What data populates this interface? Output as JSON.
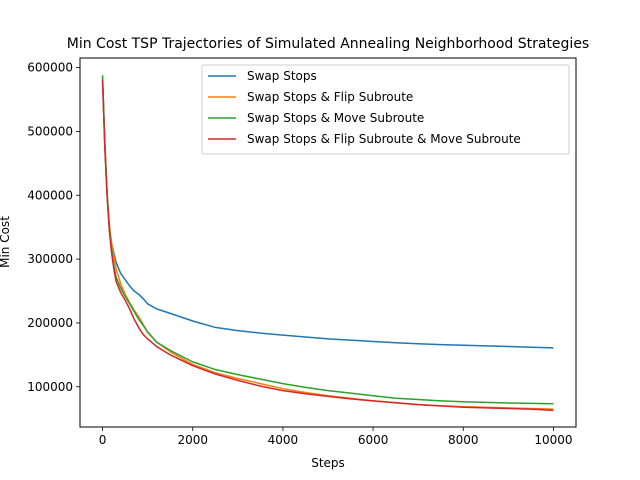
{
  "chart_data": {
    "type": "line",
    "title": "Min Cost TSP Trajectories of Simulated Annealing Neighborhood Strategies",
    "xlabel": "Steps",
    "ylabel": "Min Cost",
    "xlim": [
      -500,
      10500
    ],
    "ylim": [
      37000,
      615000
    ],
    "xticks": [
      0,
      2000,
      4000,
      6000,
      8000,
      10000
    ],
    "yticks": [
      100000,
      200000,
      300000,
      400000,
      500000,
      600000
    ],
    "grid": false,
    "legend_position": "upper-right",
    "series": [
      {
        "name": "Swap Stops",
        "color": "#1f77b4",
        "x": [
          0,
          50,
          100,
          150,
          200,
          250,
          300,
          400,
          500,
          600,
          700,
          800,
          900,
          1000,
          1200,
          1500,
          2000,
          2500,
          3000,
          3500,
          4000,
          4500,
          5000,
          5500,
          6000,
          6500,
          7000,
          7500,
          8000,
          8500,
          9000,
          9500,
          10000
        ],
        "values": [
          580000,
          480000,
          400000,
          350000,
          325000,
          310000,
          295000,
          278000,
          268000,
          258000,
          250000,
          245000,
          238000,
          230000,
          222000,
          215000,
          203000,
          193000,
          188000,
          184000,
          181000,
          178000,
          175000,
          173000,
          171000,
          169000,
          167500,
          166000,
          165000,
          164000,
          163000,
          162000,
          161000
        ]
      },
      {
        "name": "Swap Stops & Flip Subroute",
        "color": "#ff7f0e",
        "x": [
          0,
          50,
          100,
          150,
          200,
          250,
          300,
          400,
          500,
          600,
          700,
          800,
          900,
          1000,
          1200,
          1500,
          2000,
          2500,
          3000,
          3500,
          4000,
          4500,
          5000,
          5500,
          6000,
          6500,
          7000,
          7500,
          8000,
          8500,
          9000,
          9500,
          10000
        ],
        "values": [
          585000,
          480000,
          405000,
          355000,
          325000,
          305000,
          285000,
          262000,
          245000,
          232000,
          220000,
          210000,
          198000,
          185000,
          170000,
          155000,
          135000,
          122000,
          113000,
          105000,
          97000,
          91000,
          86000,
          82000,
          78000,
          75000,
          72000,
          70000,
          69000,
          68000,
          67000,
          66000,
          65000
        ]
      },
      {
        "name": "Swap Stops & Move Subroute",
        "color": "#2ca02c",
        "x": [
          0,
          50,
          100,
          150,
          200,
          250,
          300,
          400,
          500,
          600,
          700,
          800,
          900,
          1000,
          1200,
          1500,
          2000,
          2500,
          3000,
          3500,
          4000,
          4500,
          5000,
          5500,
          6000,
          6500,
          7000,
          7500,
          8000,
          8500,
          9000,
          9500,
          10000
        ],
        "values": [
          588000,
          485000,
          405000,
          350000,
          315000,
          290000,
          272000,
          255000,
          242000,
          230000,
          218000,
          206000,
          196000,
          186000,
          170000,
          157000,
          139000,
          127000,
          119000,
          112000,
          105000,
          99000,
          94000,
          90000,
          86000,
          82000,
          80000,
          78000,
          76500,
          75500,
          74500,
          74000,
          73500
        ]
      },
      {
        "name": "Swap Stops & Flip Subroute & Move Subroute",
        "color": "#d62728",
        "x": [
          0,
          50,
          100,
          150,
          200,
          250,
          300,
          400,
          500,
          600,
          700,
          800,
          900,
          1000,
          1200,
          1500,
          2000,
          2500,
          3000,
          3500,
          4000,
          4500,
          5000,
          5500,
          6000,
          6500,
          7000,
          7500,
          8000,
          8500,
          9000,
          9500,
          10000
        ],
        "values": [
          580000,
          475000,
          400000,
          345000,
          310000,
          285000,
          265000,
          248000,
          236000,
          222000,
          206000,
          193000,
          182000,
          175000,
          163000,
          150000,
          133000,
          120000,
          110000,
          101000,
          94000,
          89000,
          85000,
          81000,
          78000,
          75000,
          72000,
          70000,
          68000,
          67000,
          66000,
          65000,
          63000
        ]
      }
    ]
  }
}
